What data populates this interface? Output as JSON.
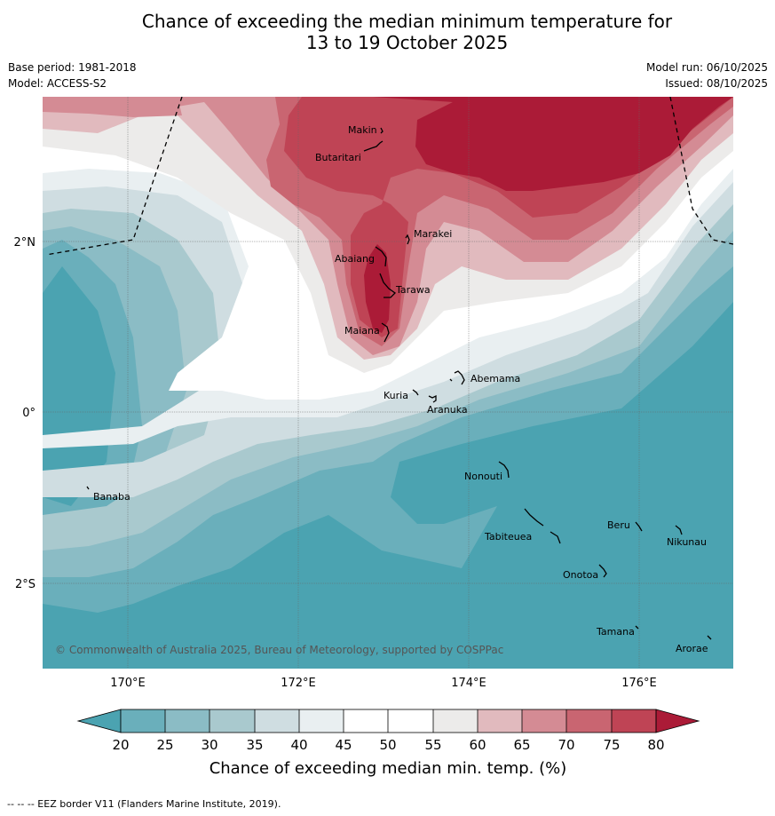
{
  "title": {
    "line1": "Chance of exceeding the median minimum temperature for",
    "line2": "13 to 19 October 2025"
  },
  "meta": {
    "base_period": "Base period: 1981-2018",
    "model": "Model: ACCESS-S2",
    "model_run": "Model run: 06/10/2025",
    "issued": "Issued: 08/10/2025"
  },
  "map": {
    "lon_labels": [
      "170°E",
      "172°E",
      "174°E",
      "176°E"
    ],
    "lat_labels": [
      "2°N",
      "0°",
      "2°S"
    ],
    "places": [
      "Makin",
      "Butaritari",
      "Marakei",
      "Abaiang",
      "Tarawa",
      "Maiana",
      "Abemama",
      "Kuria",
      "Aranuka",
      "Nonouti",
      "Banaba",
      "Beru",
      "Nikunau",
      "Tabiteuea",
      "Onotoa",
      "Tamana",
      "Arorae"
    ],
    "copyright": "© Commonwealth of Australia 2025, Bureau of Meteorology, supported by COSPPac"
  },
  "colorbar": {
    "ticks": [
      "20",
      "25",
      "30",
      "35",
      "40",
      "45",
      "50",
      "55",
      "60",
      "65",
      "70",
      "75",
      "80"
    ],
    "label": "Chance of exceeding median min. temp. (%)",
    "colors": [
      "#4ba3b1",
      "#6aafbb",
      "#8bbcc5",
      "#a9c9ce",
      "#cfdde1",
      "#e9eff1",
      "#ffffff",
      "#ffffff",
      "#ecebea",
      "#e1babe",
      "#d48b94",
      "#c96571",
      "#bf4455",
      "#ab1b37"
    ]
  },
  "footer": "--  --  -- EEZ border V11 (Flanders Marine Institute, 2019)."
}
